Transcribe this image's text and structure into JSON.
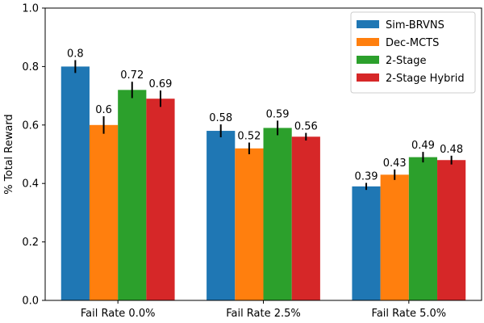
{
  "chart_data": {
    "type": "bar",
    "title": "",
    "xlabel": "",
    "ylabel": "% Total Reward",
    "ylim": [
      0,
      1.0
    ],
    "yticks": [
      "0.0",
      "0.2",
      "0.4",
      "0.6",
      "0.8",
      "1.0"
    ],
    "grid": false,
    "legend_position": "top-right",
    "categories": [
      "Fail Rate 0.0%",
      "Fail Rate 2.5%",
      "Fail Rate 5.0%"
    ],
    "series": [
      {
        "name": "Sim-BRVNS",
        "color": "#1f77b4",
        "values": [
          0.8,
          0.58,
          0.39
        ],
        "errors": [
          0.022,
          0.022,
          0.012
        ],
        "labels": [
          "0.8",
          "0.58",
          "0.39"
        ]
      },
      {
        "name": "Dec-MCTS",
        "color": "#ff7f0e",
        "values": [
          0.6,
          0.52,
          0.43
        ],
        "errors": [
          0.03,
          0.02,
          0.018
        ],
        "labels": [
          "0.6",
          "0.52",
          "0.43"
        ]
      },
      {
        "name": "2-Stage",
        "color": "#2ca02c",
        "values": [
          0.72,
          0.59,
          0.49
        ],
        "errors": [
          0.028,
          0.025,
          0.018
        ],
        "labels": [
          "0.72",
          "0.59",
          "0.49"
        ]
      },
      {
        "name": "2-Stage Hybrid",
        "color": "#d62728",
        "values": [
          0.69,
          0.56,
          0.48
        ],
        "errors": [
          0.028,
          0.013,
          0.015
        ],
        "labels": [
          "0.69",
          "0.56",
          "0.48"
        ]
      }
    ]
  }
}
